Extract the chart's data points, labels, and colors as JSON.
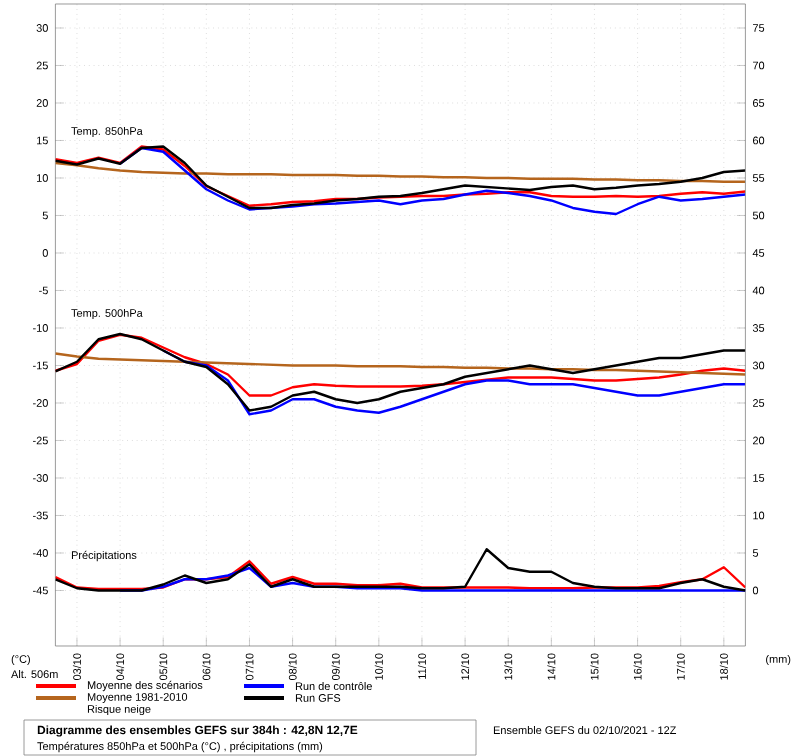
{
  "chart_data": {
    "type": "line",
    "title": "Diagramme des ensembles GEFS sur 384h : 42,8N 12,7E",
    "subtitle": "Températures 850hPa et 500hPa (°C) , précipitations (mm)",
    "ylabel": "(°C)",
    "y2label": "(mm)",
    "annotations": [
      "Temp. 850hPa",
      "Temp. 500hPa",
      "Précipitations",
      "Alt. 506m",
      "Risque neige",
      "Ensemble GEFS du 02/10/2021 - 12Z"
    ],
    "x": [
      "2021-10-02T12:00",
      "2021-10-03T00:00",
      "2021-10-03T12:00",
      "2021-10-04T00:00",
      "2021-10-04T12:00",
      "2021-10-05T00:00",
      "2021-10-05T12:00",
      "2021-10-06T00:00",
      "2021-10-06T12:00",
      "2021-10-07T00:00",
      "2021-10-07T12:00",
      "2021-10-08T00:00",
      "2021-10-08T12:00",
      "2021-10-09T00:00",
      "2021-10-09T12:00",
      "2021-10-10T00:00",
      "2021-10-10T12:00",
      "2021-10-11T00:00",
      "2021-10-11T12:00",
      "2021-10-12T00:00",
      "2021-10-12T12:00",
      "2021-10-13T00:00",
      "2021-10-13T12:00",
      "2021-10-14T00:00",
      "2021-10-14T12:00",
      "2021-10-15T00:00",
      "2021-10-15T12:00",
      "2021-10-16T00:00",
      "2021-10-16T12:00",
      "2021-10-17T00:00",
      "2021-10-17T12:00",
      "2021-10-18T00:00",
      "2021-10-18T12:00"
    ],
    "xlim": [
      "2021-10-02T12:00",
      "2021-10-18T12:00"
    ],
    "xticks": [
      {
        "value": "2021-10-03",
        "label": "03/10"
      },
      {
        "value": "2021-10-04",
        "label": "04/10"
      },
      {
        "value": "2021-10-05",
        "label": "05/10"
      },
      {
        "value": "2021-10-06",
        "label": "06/10"
      },
      {
        "value": "2021-10-07",
        "label": "07/10"
      },
      {
        "value": "2021-10-08",
        "label": "08/10"
      },
      {
        "value": "2021-10-09",
        "label": "09/10"
      },
      {
        "value": "2021-10-10",
        "label": "10/10"
      },
      {
        "value": "2021-10-11",
        "label": "11/10"
      },
      {
        "value": "2021-10-12",
        "label": "12/10"
      },
      {
        "value": "2021-10-13",
        "label": "13/10"
      },
      {
        "value": "2021-10-14",
        "label": "14/10"
      },
      {
        "value": "2021-10-15",
        "label": "15/10"
      },
      {
        "value": "2021-10-16",
        "label": "16/10"
      },
      {
        "value": "2021-10-17",
        "label": "17/10"
      },
      {
        "value": "2021-10-18",
        "label": "18/10"
      }
    ],
    "ylim": [
      -52.4,
      33.2
    ],
    "yticks": [
      -45,
      -40,
      -35,
      -30,
      -25,
      -20,
      -15,
      -10,
      -5,
      0,
      5,
      10,
      15,
      20,
      25,
      30
    ],
    "y2lim": [
      -7.4,
      78.2
    ],
    "y2ticks": [
      0,
      5,
      10,
      15,
      20,
      25,
      30,
      35,
      40,
      45,
      50,
      55,
      60,
      65,
      70,
      75
    ],
    "grid": true,
    "legend": "bottom",
    "series": [
      {
        "name": "Moyenne des scénarios",
        "color": "#ff0000",
        "values": [
          12.5,
          12.0,
          12.7,
          12.0,
          14.2,
          13.8,
          11.6,
          8.9,
          7.6,
          6.3,
          6.5,
          6.8,
          6.9,
          7.2,
          7.2,
          7.4,
          7.5,
          7.6,
          7.6,
          7.8,
          7.9,
          8.1,
          8.1,
          7.6,
          7.5,
          7.5,
          7.6,
          7.5,
          7.6,
          7.9,
          8.1,
          7.9,
          8.2
        ]
      },
      {
        "name": "Moyenne 1981-2010",
        "color": "#b5651d",
        "values": [
          12.0,
          11.7,
          11.3,
          11.0,
          10.8,
          10.7,
          10.6,
          10.6,
          10.5,
          10.5,
          10.5,
          10.4,
          10.4,
          10.4,
          10.3,
          10.3,
          10.2,
          10.2,
          10.1,
          10.1,
          10.0,
          10.0,
          9.9,
          9.9,
          9.9,
          9.8,
          9.8,
          9.7,
          9.7,
          9.6,
          9.6,
          9.5,
          9.5
        ]
      },
      {
        "name": "Run de contrôle",
        "color": "#0000ff",
        "values": [
          null,
          null,
          null,
          11.9,
          14.0,
          13.5,
          11.0,
          8.5,
          7.0,
          5.8,
          6.0,
          6.2,
          6.5,
          6.6,
          6.8,
          7.0,
          6.5,
          7.0,
          7.2,
          7.8,
          8.3,
          8.0,
          7.6,
          7.0,
          6.0,
          5.5,
          5.2,
          6.5,
          7.5,
          7.0,
          7.2,
          7.5,
          7.8
        ]
      },
      {
        "name": "Run GFS",
        "color": "#000000",
        "values": [
          12.3,
          11.8,
          12.6,
          11.9,
          14.0,
          14.2,
          12.0,
          9.0,
          7.5,
          6.0,
          6.0,
          6.4,
          6.6,
          7.0,
          7.2,
          7.5,
          7.6,
          8.0,
          8.5,
          9.0,
          8.8,
          8.6,
          8.4,
          8.8,
          9.0,
          8.5,
          8.7,
          9.0,
          9.2,
          9.5,
          10.0,
          10.8,
          11.0
        ]
      },
      {
        "color": "#ff0000",
        "values": [
          -15.7,
          -14.8,
          -11.7,
          -10.9,
          -11.3,
          -12.6,
          -13.9,
          -14.8,
          -16.2,
          -19.0,
          -19.0,
          -17.9,
          -17.5,
          -17.7,
          -17.8,
          -17.8,
          -17.8,
          -17.7,
          -17.5,
          -17.2,
          -16.9,
          -16.6,
          -16.6,
          -16.6,
          -16.8,
          -17.0,
          -17.0,
          -16.8,
          -16.6,
          -16.2,
          -15.7,
          -15.4,
          -15.7
        ]
      },
      {
        "color": "#b5651d",
        "values": [
          -13.4,
          -13.8,
          -14.1,
          -14.2,
          -14.3,
          -14.4,
          -14.5,
          -14.6,
          -14.7,
          -14.8,
          -14.9,
          -15.0,
          -15.0,
          -15.0,
          -15.1,
          -15.1,
          -15.1,
          -15.2,
          -15.2,
          -15.3,
          -15.3,
          -15.4,
          -15.4,
          -15.5,
          -15.5,
          -15.6,
          -15.6,
          -15.7,
          -15.8,
          -15.9,
          -16.0,
          -16.1,
          -16.2
        ]
      },
      {
        "color": "#0000ff",
        "values": [
          null,
          null,
          null,
          null,
          null,
          -13.0,
          -14.5,
          -15.0,
          -17.0,
          -21.5,
          -21.0,
          -19.5,
          -19.5,
          -20.5,
          -21.0,
          -21.3,
          -20.5,
          -19.5,
          -18.5,
          -17.5,
          -17.0,
          -17.0,
          -17.5,
          -17.5,
          -17.5,
          -18.0,
          -18.5,
          -19.0,
          -19.0,
          -18.5,
          -18.0,
          -17.5,
          -17.5
        ]
      },
      {
        "color": "#000000",
        "values": [
          -15.8,
          -14.5,
          -11.5,
          -10.8,
          -11.5,
          -13.0,
          -14.5,
          -15.2,
          -17.5,
          -21.0,
          -20.5,
          -19.0,
          -18.5,
          -19.5,
          -20.0,
          -19.5,
          -18.5,
          -18.0,
          -17.5,
          -16.5,
          -16.0,
          -15.5,
          -15.0,
          -15.5,
          -16.0,
          -15.5,
          -15.0,
          -14.5,
          -14.0,
          -14.0,
          -13.5,
          -13.0,
          -13.0
        ]
      },
      {
        "color": "#ff0000",
        "axis": "y2",
        "values": [
          1.8,
          0.4,
          0.2,
          0.2,
          0.2,
          0.4,
          1.5,
          1.5,
          1.8,
          3.9,
          0.9,
          1.8,
          0.9,
          0.9,
          0.7,
          0.7,
          0.9,
          0.4,
          0.4,
          0.4,
          0.4,
          0.4,
          0.3,
          0.3,
          0.3,
          0.4,
          0.4,
          0.4,
          0.6,
          1.1,
          1.5,
          3.1,
          0.4
        ]
      },
      {
        "color": "#0000ff",
        "axis": "y2",
        "values": [
          null,
          null,
          null,
          0,
          0,
          0.5,
          1.5,
          1.5,
          2.0,
          3.0,
          0.5,
          1.0,
          0.5,
          0.5,
          0.3,
          0.3,
          0.3,
          0,
          0,
          0,
          0,
          0,
          0,
          0,
          0,
          0,
          0,
          0,
          0,
          0,
          0,
          0,
          0
        ]
      },
      {
        "color": "#000000",
        "axis": "y2",
        "values": [
          1.5,
          0.3,
          0,
          0,
          0,
          0.8,
          2.0,
          1.0,
          1.5,
          3.5,
          0.5,
          1.5,
          0.5,
          0.5,
          0.5,
          0.5,
          0.5,
          0.3,
          0.3,
          0.5,
          5.5,
          3.0,
          2.5,
          2.5,
          1.0,
          0.5,
          0.3,
          0.3,
          0.3,
          1.0,
          1.5,
          0.5,
          0
        ]
      }
    ]
  }
}
